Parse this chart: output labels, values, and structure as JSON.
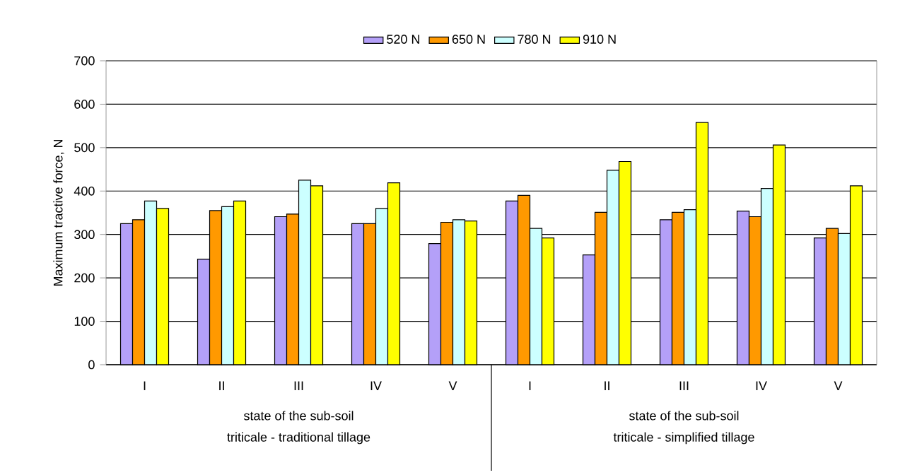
{
  "chart_data": {
    "type": "bar",
    "ylabel": "Maximum tractive force, N",
    "categories": [
      "I",
      "II",
      "III",
      "IV",
      "V",
      "I",
      "II",
      "III",
      "IV",
      "V"
    ],
    "series": [
      {
        "name": "520 N",
        "color": "#b4a0f8",
        "values": [
          325,
          243,
          341,
          325,
          279,
          377,
          253,
          334,
          354,
          292
        ]
      },
      {
        "name": "650 N",
        "color": "#ff9900",
        "values": [
          334,
          355,
          347,
          325,
          328,
          390,
          351,
          351,
          341,
          314
        ]
      },
      {
        "name": "780 N",
        "color": "#ccffff",
        "values": [
          377,
          364,
          425,
          360,
          334,
          314,
          448,
          357,
          406,
          302
        ]
      },
      {
        "name": "910 N",
        "color": "#ffff00",
        "values": [
          360,
          377,
          412,
          419,
          331,
          292,
          468,
          558,
          506,
          412
        ]
      }
    ],
    "ylim": [
      0,
      700
    ],
    "yticks": [
      0,
      100,
      200,
      300,
      400,
      500,
      600,
      700
    ],
    "grid": "y",
    "legend": "top",
    "annotations": [
      "state of the sub-soil",
      "triticale - traditional tillage",
      "state of the sub-soil",
      "triticale - simplified tillage"
    ]
  }
}
